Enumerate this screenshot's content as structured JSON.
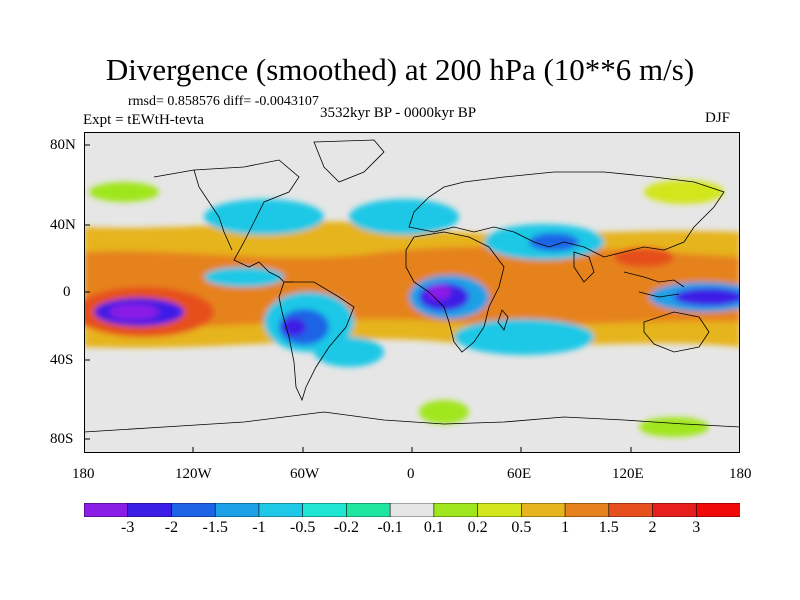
{
  "header": {
    "title": "Divergence (smoothed) at 200 hPa (10**6 m/s)",
    "stats": "rmsd= 0.858576 diff= -0.0043107",
    "experiment": "Expt = tEWtH-tevta",
    "period": "3532kyr BP - 0000kyr BP",
    "season": "DJF"
  },
  "axes": {
    "y_labels": [
      "80N",
      "40N",
      "0",
      "40S",
      "80S"
    ],
    "x_labels": [
      "180",
      "120W",
      "60W",
      "0",
      "60E",
      "120E",
      "180"
    ]
  },
  "colorbar": {
    "labels": [
      "-3",
      "-2",
      "-1.5",
      "-1",
      "-0.5",
      "-0.2",
      "-0.1",
      "0.1",
      "0.2",
      "0.5",
      "1",
      "1.5",
      "2",
      "3"
    ],
    "colors": [
      "#8a1ee6",
      "#3c1ee6",
      "#1e64e6",
      "#1ea0e6",
      "#1ec8e6",
      "#1ee6d2",
      "#1ee6a0",
      "#e6e6e6",
      "#a0e61e",
      "#d2e61e",
      "#e6b41e",
      "#e6821e",
      "#e6501e",
      "#e61e1e",
      "#f00a0a"
    ]
  }
}
